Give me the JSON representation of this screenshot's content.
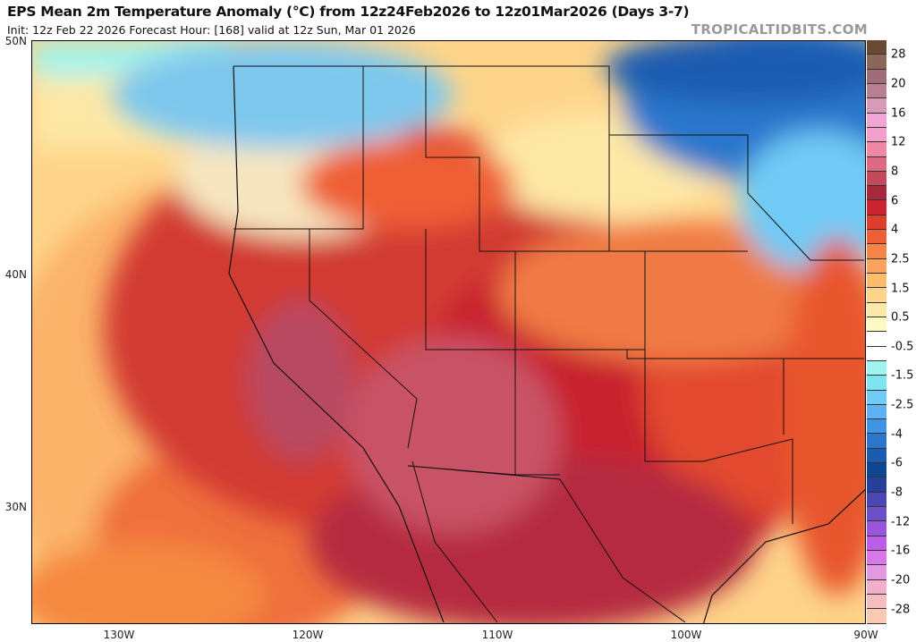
{
  "header": {
    "title": "EPS Mean 2m Temperature Anomaly (°C) from 12z24Feb2026 to 12z01Mar2026 (Days 3-7)",
    "subtitle": "Init: 12z Feb 22 2026   Forecast Hour: [168]   valid at 12z Sun, Mar 01 2026",
    "brand": "TROPICALTIDBITS.COM"
  },
  "map": {
    "region": "Western and Central United States",
    "lat_labels": [
      "50N",
      "40N",
      "30N"
    ],
    "lon_labels": [
      "130W",
      "120W",
      "110W",
      "100W",
      "90W"
    ]
  },
  "colorbar": {
    "labels": [
      "28",
      "20",
      "16",
      "12",
      "8",
      "6",
      "4",
      "2.5",
      "1.5",
      "0.5",
      "-0.5",
      "-1.5",
      "-2.5",
      "-4",
      "-6",
      "-8",
      "-12",
      "-16",
      "-20",
      "-28"
    ],
    "colors": [
      "#6b4a33",
      "#8c6658",
      "#a06c7a",
      "#b87f92",
      "#d79ab8",
      "#f0a6d4",
      "#f5a0cc",
      "#ef88a6",
      "#dc6a80",
      "#c24a5c",
      "#a72a3c",
      "#c8232e",
      "#de3f2c",
      "#ef5f36",
      "#f68448",
      "#fba35e",
      "#fdbb6c",
      "#fed48a",
      "#fee8a6",
      "#fff9c4",
      "#ffffff",
      "#ffffff",
      "#9ef4ee",
      "#7ee4f2",
      "#6fcaf5",
      "#5db2f3",
      "#3f94e6",
      "#2a77cc",
      "#1c5bb0",
      "#0e4694",
      "#27409a",
      "#4a47b4",
      "#6d4fc8",
      "#9a55dc",
      "#bd5ee8",
      "#d878ea",
      "#e49ae0",
      "#f2b0c8",
      "#f7bcc0",
      "#fccab0"
    ]
  }
}
